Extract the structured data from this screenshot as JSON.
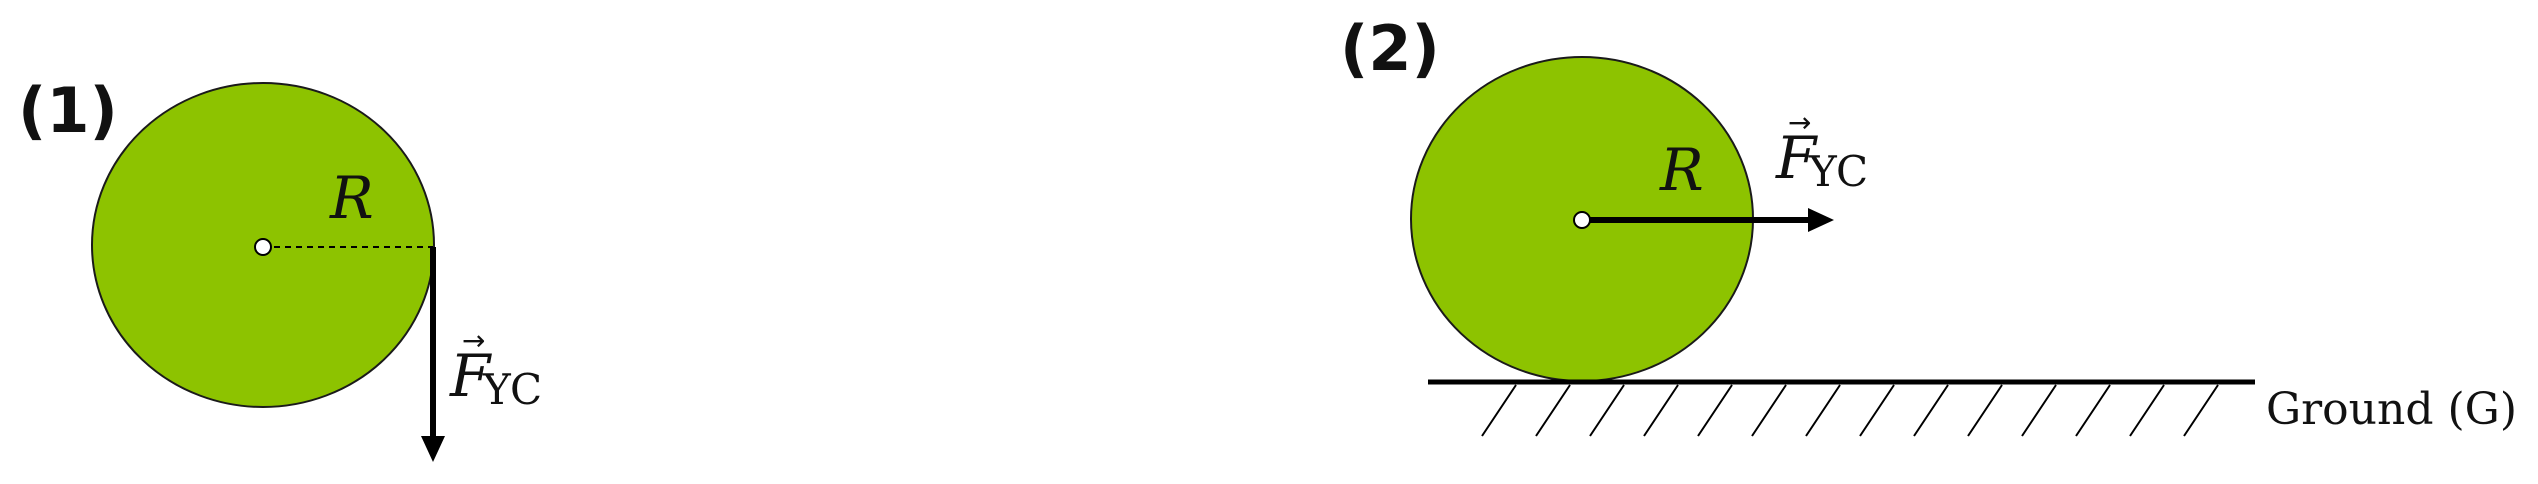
{
  "panels": [
    {
      "label": "(1)",
      "radius_label": "R",
      "force": {
        "symbol": "F",
        "subscript": "YC"
      }
    },
    {
      "label": "(2)",
      "radius_label": "R",
      "force": {
        "symbol": "F",
        "subscript": "YC"
      },
      "ground_label": "Ground (G)"
    }
  ],
  "colors": {
    "disk_fill": "#8DC300",
    "disk_stroke": "#1a1a1a",
    "line": "#000000"
  }
}
